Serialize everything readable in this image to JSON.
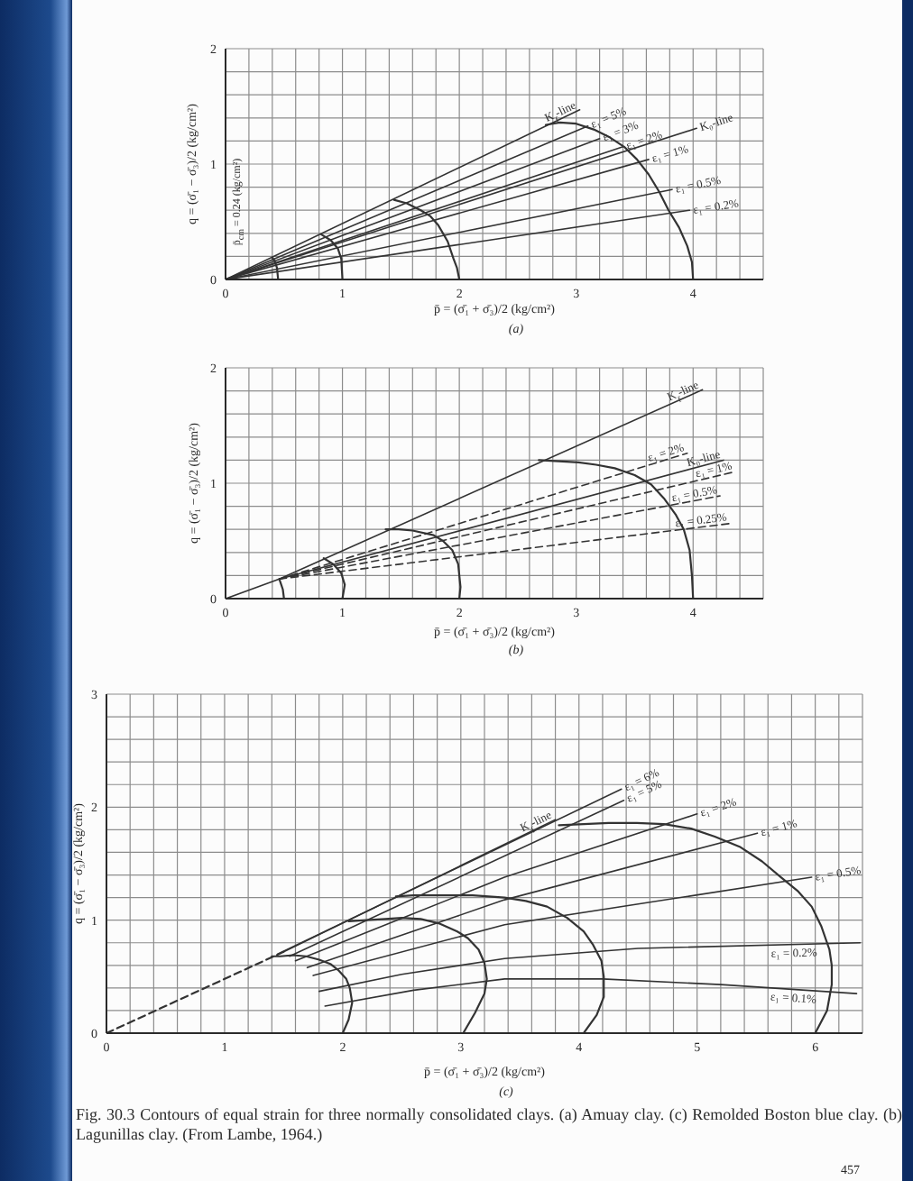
{
  "chart_data": [
    {
      "type": "line",
      "subtitle": "(a)",
      "xlabel": "p̄ = (σ̄₁ + σ̄₃)/2 (kg/cm²)",
      "ylabel": "q = (σ̄₁ − σ̄₃)/2 (kg/cm²)",
      "annotations": [
        "p̄$_{cm}$ = 0.24 (kg/cm²)"
      ],
      "xlim": [
        0,
        4.6
      ],
      "ylim": [
        0,
        2
      ],
      "xticks": [
        0,
        {
          "value": 0.2,
          "label": null
        },
        {
          "value": 0.4,
          "label": null
        },
        {
          "value": 0.6,
          "label": null
        },
        {
          "value": 0.8,
          "label": null
        },
        1,
        {
          "value": 1.2,
          "label": null
        },
        {
          "value": 1.4,
          "label": null
        },
        {
          "value": 1.6,
          "label": null
        },
        {
          "value": 1.8,
          "label": null
        },
        2,
        {
          "value": 2.2,
          "label": null
        },
        {
          "value": 2.4,
          "label": null
        },
        {
          "value": 2.6,
          "label": null
        },
        {
          "value": 2.8,
          "label": null
        },
        3,
        {
          "value": 3.2,
          "label": null
        },
        {
          "value": 3.4,
          "label": null
        },
        {
          "value": 3.6,
          "label": null
        },
        {
          "value": 3.8,
          "label": null
        },
        4,
        {
          "value": 4.2,
          "label": null
        },
        {
          "value": 4.4,
          "label": null
        },
        {
          "value": 4.6,
          "label": null
        }
      ],
      "yticks": [
        0,
        {
          "value": 0.2,
          "label": null
        },
        {
          "value": 0.4,
          "label": null
        },
        {
          "value": 0.6,
          "label": null
        },
        {
          "value": 0.8,
          "label": null
        },
        1,
        {
          "value": 1.2,
          "label": null
        },
        {
          "value": 1.4,
          "label": null
        },
        {
          "value": 1.6,
          "label": null
        },
        {
          "value": 1.8,
          "label": null
        },
        2
      ],
      "grid": true,
      "marker": "none",
      "line_style": "solid",
      "series": [
        {
          "name": "K$_{f}$-line",
          "color": "#333333",
          "x": [
            0,
            3.03
          ],
          "values": [
            0,
            1.47
          ]
        },
        {
          "name": "ε₁ = 5%",
          "color": "#333333",
          "x": [
            0,
            3.1
          ],
          "values": [
            0,
            1.33
          ]
        },
        {
          "name": "ε₁ = 3%",
          "color": "#333333",
          "x": [
            0,
            3.2
          ],
          "values": [
            0,
            1.22
          ]
        },
        {
          "name": "ε₁ = 2%",
          "color": "#333333",
          "x": [
            0,
            3.4
          ],
          "values": [
            0,
            1.15
          ]
        },
        {
          "name": "K₀-line",
          "color": "#333333",
          "x": [
            0,
            4.03
          ],
          "values": [
            0,
            1.31
          ]
        },
        {
          "name": "ε₁ = 1%",
          "color": "#333333",
          "x": [
            0,
            3.62
          ],
          "values": [
            0,
            1.04
          ]
        },
        {
          "name": "ε₁ = 0.5%",
          "color": "#333333",
          "x": [
            0,
            3.82
          ],
          "values": [
            0,
            0.78
          ]
        },
        {
          "name": "ε₁ = 0.2%",
          "color": "#333333",
          "x": [
            0,
            3.97
          ],
          "values": [
            0,
            0.6
          ]
        },
        {
          "color": "#333333",
          "x": [
            4.0,
            3.99,
            3.95,
            3.88,
            3.79,
            3.71,
            3.62,
            3.52,
            3.41,
            3.29,
            3.15,
            3.0,
            2.86,
            2.74
          ],
          "values": [
            0,
            0.15,
            0.29,
            0.45,
            0.6,
            0.76,
            0.91,
            1.04,
            1.15,
            1.23,
            1.3,
            1.35,
            1.36,
            1.34
          ]
        },
        {
          "color": "#333333",
          "x": [
            2.0,
            1.98,
            1.95,
            1.9,
            1.82,
            1.75,
            1.67,
            1.55,
            1.44
          ],
          "values": [
            0,
            0.1,
            0.18,
            0.33,
            0.47,
            0.55,
            0.6,
            0.66,
            0.69
          ]
        },
        {
          "color": "#333333",
          "x": [
            1.0,
            0.99,
            0.96,
            0.9,
            0.82
          ],
          "values": [
            0,
            0.18,
            0.27,
            0.34,
            0.39
          ]
        },
        {
          "color": "#333333",
          "x": [
            0.45,
            0.44,
            0.42,
            0.4
          ],
          "values": [
            0,
            0.1,
            0.16,
            0.19
          ]
        }
      ]
    },
    {
      "type": "line",
      "subtitle": "(b)",
      "xlabel": "p̄ = (σ̄₁ + σ̄₃)/2 (kg/cm²)",
      "ylabel": "q = (σ̄₁ − σ̄₃)/2 (kg/cm²)",
      "xlim": [
        0,
        4.6
      ],
      "ylim": [
        0,
        2
      ],
      "xticks": [
        0,
        {
          "value": 0.2,
          "label": null
        },
        {
          "value": 0.4,
          "label": null
        },
        {
          "value": 0.6,
          "label": null
        },
        {
          "value": 0.8,
          "label": null
        },
        1,
        {
          "value": 1.2,
          "label": null
        },
        {
          "value": 1.4,
          "label": null
        },
        {
          "value": 1.6,
          "label": null
        },
        {
          "value": 1.8,
          "label": null
        },
        2,
        {
          "value": 2.2,
          "label": null
        },
        {
          "value": 2.4,
          "label": null
        },
        {
          "value": 2.6,
          "label": null
        },
        {
          "value": 2.8,
          "label": null
        },
        3,
        {
          "value": 3.2,
          "label": null
        },
        {
          "value": 3.4,
          "label": null
        },
        {
          "value": 3.6,
          "label": null
        },
        {
          "value": 3.8,
          "label": null
        },
        4,
        {
          "value": 4.2,
          "label": null
        },
        {
          "value": 4.4,
          "label": null
        },
        {
          "value": 4.6,
          "label": null
        }
      ],
      "yticks": [
        0,
        {
          "value": 0.2,
          "label": null
        },
        {
          "value": 0.4,
          "label": null
        },
        {
          "value": 0.6,
          "label": null
        },
        {
          "value": 0.8,
          "label": null
        },
        1,
        {
          "value": 1.2,
          "label": null
        },
        {
          "value": 1.4,
          "label": null
        },
        {
          "value": 1.6,
          "label": null
        },
        {
          "value": 1.8,
          "label": null
        },
        2
      ],
      "grid": true,
      "marker": "none",
      "line_style": "solid",
      "series": [
        {
          "name": "K$_{f}$-line",
          "color": "#333333",
          "x": [
            0,
            0.46,
            4.08
          ],
          "values": [
            0,
            0.17,
            1.81
          ]
        },
        {
          "name": "ε₁ = 2%",
          "color": "#333333",
          "line_style": "dashed",
          "x": [
            0.46,
            3.95
          ],
          "values": [
            0.17,
            1.26
          ]
        },
        {
          "name": "K₀-line",
          "color": "#333333",
          "x": [
            0.46,
            4.26
          ],
          "values": [
            0.17,
            1.2
          ]
        },
        {
          "name": "ε₁ = 1%",
          "color": "#333333",
          "line_style": "dashed",
          "x": [
            0.46,
            4.36
          ],
          "values": [
            0.17,
            1.1
          ]
        },
        {
          "name": "ε₁ = 0.5%",
          "color": "#333333",
          "line_style": "dashed",
          "x": [
            0.46,
            4.23
          ],
          "values": [
            0.17,
            0.89
          ]
        },
        {
          "name": "ε₁ = 0.25%",
          "color": "#333333",
          "line_style": "dashed",
          "x": [
            0.46,
            4.31
          ],
          "values": [
            0.17,
            0.65
          ]
        },
        {
          "color": "#333333",
          "x": [
            4.0,
            3.99,
            3.97,
            3.92,
            3.85,
            3.75,
            3.64,
            3.5,
            3.33,
            3.17,
            3.02,
            2.85,
            2.68
          ],
          "values": [
            0,
            0.2,
            0.42,
            0.6,
            0.73,
            0.87,
            0.99,
            1.07,
            1.13,
            1.16,
            1.18,
            1.19,
            1.2
          ]
        },
        {
          "color": "#333333",
          "x": [
            2.0,
            2.01,
            1.99,
            1.94,
            1.86,
            1.78,
            1.6,
            1.48,
            1.37
          ],
          "values": [
            0,
            0.1,
            0.3,
            0.42,
            0.5,
            0.55,
            0.59,
            0.6,
            0.6
          ]
        },
        {
          "color": "#333333",
          "x": [
            1.0,
            1.02,
            0.99,
            0.92,
            0.84
          ],
          "values": [
            0,
            0.12,
            0.22,
            0.3,
            0.35
          ]
        },
        {
          "color": "#333333",
          "x": [
            0.5,
            0.49,
            0.47,
            0.46
          ],
          "values": [
            0,
            0.08,
            0.14,
            0.17
          ]
        }
      ]
    },
    {
      "type": "line",
      "subtitle": "(c)",
      "xlabel": "p̄ = (σ̄₁ + σ̄₃)/2 (kg/cm²)",
      "ylabel": "q = (σ̄₁ − σ̄₃)/2 (kg/cm²)",
      "annotations": [
        "Fig. 30.3 Contours of equal strain for three normally consolidated clays. (a) Amuay clay. (c) Remolded Boston blue clay. (b) Lagunillas clay. (From Lambe, 1964.)",
        "457"
      ],
      "xlim": [
        0,
        6.4
      ],
      "ylim": [
        0,
        3
      ],
      "xticks": [
        0,
        {
          "value": 0.2,
          "label": null
        },
        {
          "value": 0.4,
          "label": null
        },
        {
          "value": 0.6,
          "label": null
        },
        {
          "value": 0.8,
          "label": null
        },
        1,
        {
          "value": 1.2,
          "label": null
        },
        {
          "value": 1.4,
          "label": null
        },
        {
          "value": 1.6,
          "label": null
        },
        {
          "value": 1.8,
          "label": null
        },
        2,
        {
          "value": 2.2,
          "label": null
        },
        {
          "value": 2.4,
          "label": null
        },
        {
          "value": 2.6,
          "label": null
        },
        {
          "value": 2.8,
          "label": null
        },
        3,
        {
          "value": 3.2,
          "label": null
        },
        {
          "value": 3.4,
          "label": null
        },
        {
          "value": 3.6,
          "label": null
        },
        {
          "value": 3.8,
          "label": null
        },
        4,
        {
          "value": 4.2,
          "label": null
        },
        {
          "value": 4.4,
          "label": null
        },
        {
          "value": 4.6,
          "label": null
        },
        {
          "value": 4.8,
          "label": null
        },
        5,
        {
          "value": 5.2,
          "label": null
        },
        {
          "value": 5.4,
          "label": null
        },
        {
          "value": 5.6,
          "label": null
        },
        {
          "value": 5.8,
          "label": null
        },
        6,
        {
          "value": 6.2,
          "label": null
        },
        {
          "value": 6.4,
          "label": null
        }
      ],
      "yticks": [
        0,
        {
          "value": 0.2,
          "label": null
        },
        {
          "value": 0.4,
          "label": null
        },
        {
          "value": 0.6,
          "label": null
        },
        {
          "value": 0.8,
          "label": null
        },
        1,
        {
          "value": 1.2,
          "label": null
        },
        {
          "value": 1.4,
          "label": null
        },
        {
          "value": 1.6,
          "label": null
        },
        {
          "value": 1.8,
          "label": null
        },
        2,
        {
          "value": 2.2,
          "label": null
        },
        {
          "value": 2.4,
          "label": null
        },
        {
          "value": 2.6,
          "label": null
        },
        {
          "value": 2.8,
          "label": null
        },
        3
      ],
      "grid": true,
      "marker": "none",
      "line_style": "solid",
      "series": [
        {
          "color": "#333333",
          "line_style": "dashed",
          "x": [
            0,
            1.5
          ],
          "values": [
            0,
            0.72
          ]
        },
        {
          "name": "K$_{f}$-line",
          "color": "#333333",
          "x": [
            1.5,
            3.8
          ],
          "values": [
            0.72,
            1.89
          ]
        },
        {
          "name": "ε₁ = 6%",
          "color": "#333333",
          "x": [
            1.45,
            4.36
          ],
          "values": [
            0.7,
            2.16
          ]
        },
        {
          "name": "ε₁ = 5%",
          "color": "#333333",
          "x": [
            1.55,
            4.38
          ],
          "values": [
            0.68,
            2.06
          ]
        },
        {
          "name": "ε₁ = 2%",
          "color": "#333333",
          "x": [
            1.6,
            3.37,
            5.0
          ],
          "values": [
            0.64,
            1.38,
            1.94
          ]
        },
        {
          "name": "ε₁ = 1%",
          "color": "#333333",
          "x": [
            1.7,
            3.37,
            5.51
          ],
          "values": [
            0.58,
            1.18,
            1.77
          ]
        },
        {
          "name": "ε₁ = 0.5%",
          "color": "#333333",
          "x": [
            1.75,
            3.37,
            5.97
          ],
          "values": [
            0.51,
            0.96,
            1.38
          ]
        },
        {
          "name": "ε₁ = 0.2%",
          "color": "#333333",
          "x": [
            1.8,
            2.5,
            3.37,
            4.5,
            6.38
          ],
          "values": [
            0.37,
            0.52,
            0.66,
            0.75,
            0.8
          ]
        },
        {
          "name": "ε₁ = 0.1%",
          "color": "#333333",
          "x": [
            1.85,
            2.6,
            3.37,
            4.2,
            5.2,
            6.35
          ],
          "values": [
            0.24,
            0.38,
            0.48,
            0.48,
            0.43,
            0.35
          ]
        },
        {
          "color": "#333333",
          "x": [
            2.0,
            2.05,
            2.08,
            2.06,
            2.03,
            1.96,
            1.9,
            1.8,
            1.69,
            1.58,
            1.47,
            1.4
          ],
          "values": [
            0,
            0.12,
            0.27,
            0.4,
            0.48,
            0.56,
            0.61,
            0.65,
            0.68,
            0.69,
            0.68,
            0.68
          ]
        },
        {
          "color": "#333333",
          "x": [
            3.02,
            3.12,
            3.2,
            3.22,
            3.2,
            3.15,
            3.06,
            2.97,
            2.82,
            2.66,
            2.5,
            2.36,
            2.2,
            2.05
          ],
          "values": [
            0,
            0.18,
            0.35,
            0.48,
            0.62,
            0.74,
            0.84,
            0.9,
            0.97,
            1.01,
            1.02,
            1.01,
            1.0,
            0.99
          ]
        },
        {
          "color": "#333333",
          "x": [
            4.04,
            4.15,
            4.21,
            4.21,
            4.19,
            4.12,
            4.04,
            3.9,
            3.73,
            3.55,
            3.37,
            3.1,
            2.87,
            2.6,
            2.45
          ],
          "values": [
            0,
            0.16,
            0.32,
            0.5,
            0.64,
            0.78,
            0.9,
            1.02,
            1.12,
            1.17,
            1.2,
            1.22,
            1.22,
            1.22,
            1.21
          ]
        },
        {
          "color": "#333333",
          "x": [
            6.0,
            6.1,
            6.14,
            6.14,
            6.12,
            6.05,
            5.97,
            5.85,
            5.71,
            5.55,
            5.36,
            5.15,
            4.95,
            4.72,
            4.49,
            4.25,
            4.04,
            3.83
          ],
          "values": [
            0,
            0.2,
            0.43,
            0.6,
            0.74,
            0.95,
            1.12,
            1.26,
            1.38,
            1.52,
            1.65,
            1.74,
            1.81,
            1.85,
            1.86,
            1.86,
            1.85,
            1.84
          ]
        }
      ]
    }
  ]
}
